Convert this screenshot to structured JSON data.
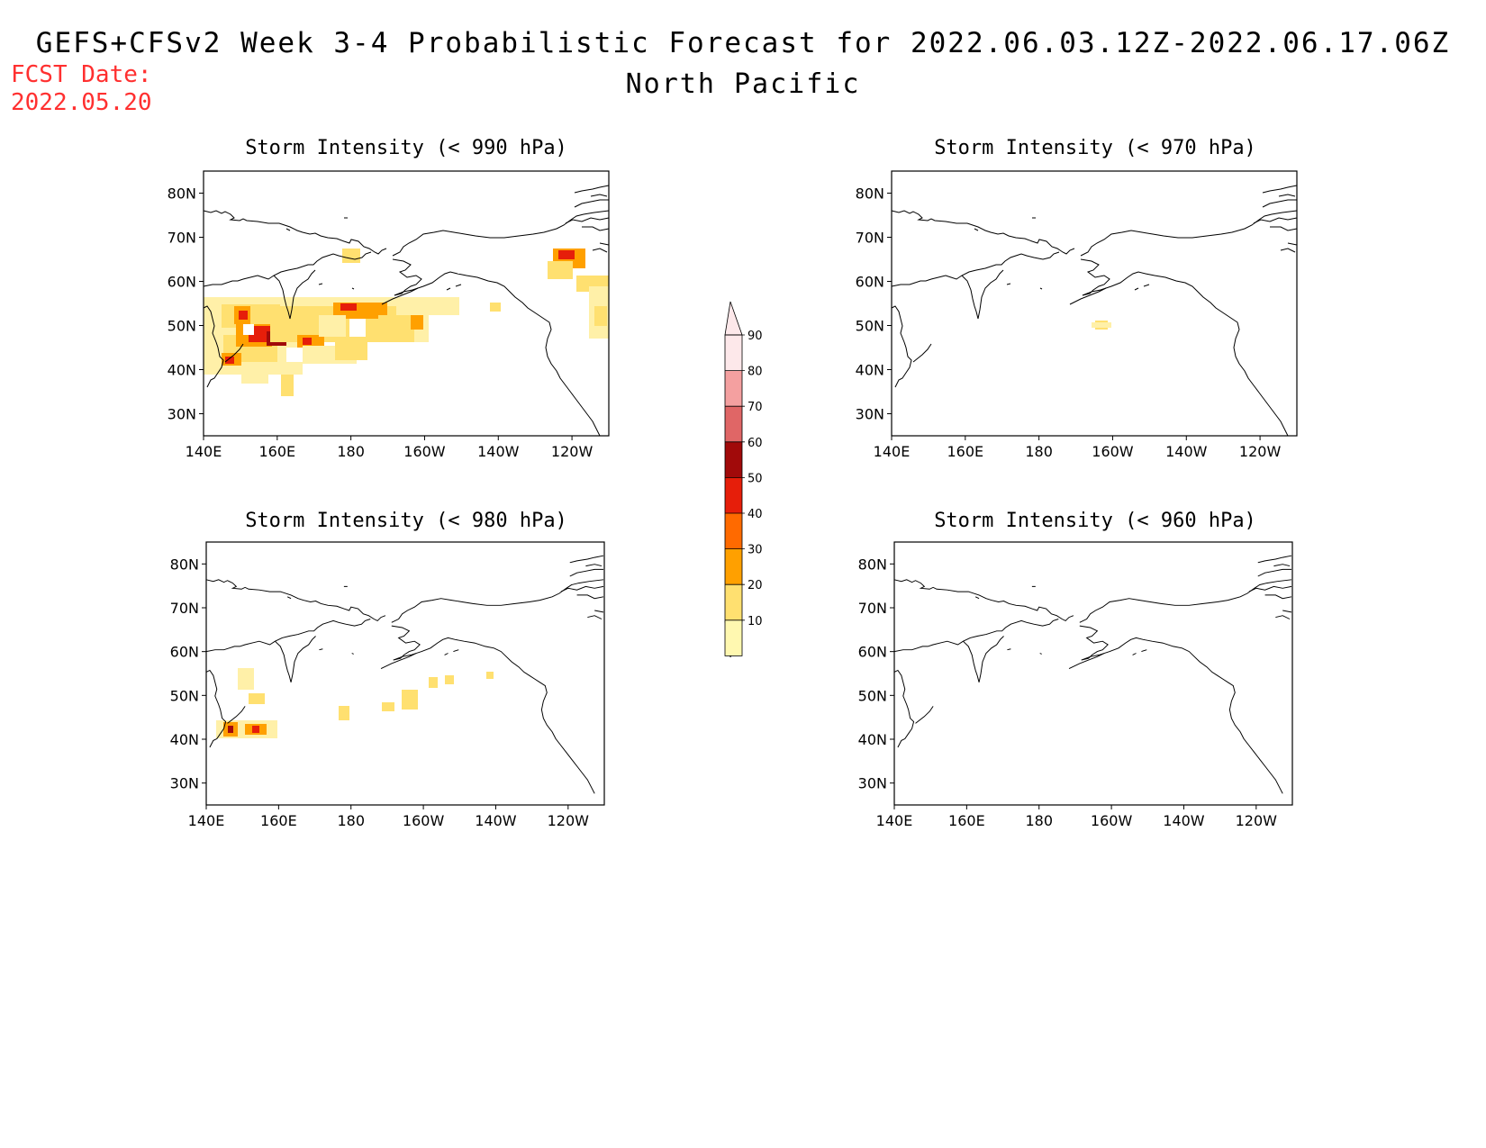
{
  "header": {
    "title": "GEFS+CFSv2 Week 3-4 Probabilistic Forecast for 2022.06.03.12Z-2022.06.17.06Z",
    "subtitle": "North Pacific",
    "fcst_label": "FCST Date:",
    "fcst_date": "2022.05.20"
  },
  "axes": {
    "lon_labels": [
      "140E",
      "160E",
      "180",
      "160W",
      "140W",
      "120W"
    ],
    "lat_labels": [
      "80N",
      "70N",
      "60N",
      "50N",
      "40N",
      "30N"
    ]
  },
  "panels": [
    {
      "id": "p990",
      "title": "Storm Intensity (< 990 hPa)"
    },
    {
      "id": "p970",
      "title": "Storm Intensity (< 970 hPa)"
    },
    {
      "id": "p980",
      "title": "Storm Intensity (< 980 hPa)"
    },
    {
      "id": "p960",
      "title": "Storm Intensity (< 960 hPa)"
    }
  ],
  "colorbar": {
    "labels": [
      "90",
      "80",
      "70",
      "60",
      "50",
      "40",
      "30",
      "20",
      "10"
    ],
    "colors": [
      "#fde8ea",
      "#f4a0a0",
      "#e06666",
      "#a10a0a",
      "#e61e0a",
      "#ff6a00",
      "#ffa000",
      "#ffe070",
      "#fff8b0"
    ]
  }
}
